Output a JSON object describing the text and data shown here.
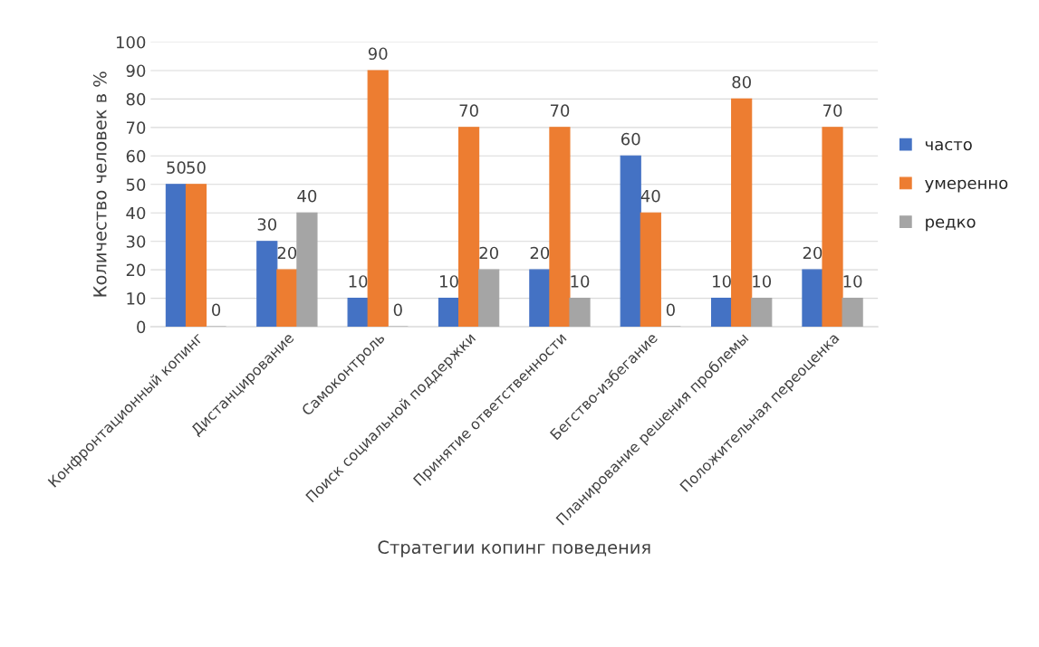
{
  "chart_data": {
    "type": "bar",
    "xlabel": "Стратегии копинг поведения",
    "ylabel": "Количество человек в %",
    "categories": [
      "Конфронтационный копинг",
      "Дистанцирование",
      "Самоконтроль",
      "Поиск социальной поддержки",
      "Принятие ответственности",
      "Бегство-избегание",
      "Планирование решения проблемы",
      "Положительная переоценка"
    ],
    "series": [
      {
        "name": "часто",
        "color": "#4472c4",
        "values": [
          50,
          30,
          10,
          10,
          20,
          60,
          10,
          20
        ]
      },
      {
        "name": "умеренно",
        "color": "#ed7d31",
        "values": [
          50,
          20,
          90,
          70,
          70,
          40,
          80,
          70
        ]
      },
      {
        "name": "редко",
        "color": "#a5a5a5",
        "values": [
          0,
          40,
          0,
          20,
          10,
          0,
          10,
          10
        ]
      }
    ],
    "ylim": [
      0,
      100
    ],
    "yticks": [
      0,
      10,
      20,
      30,
      40,
      50,
      60,
      70,
      80,
      90,
      100
    ],
    "grid": "y",
    "legend": "right",
    "data_labels": true
  }
}
